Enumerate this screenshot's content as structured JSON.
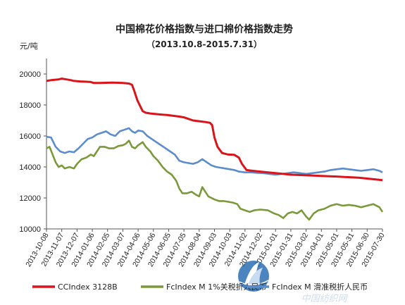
{
  "chart_data": {
    "type": "line",
    "title": "中国棉花价格指数与进口棉价格指数走势",
    "subtitle": "（2013.10.8-2015.7.31）",
    "ylabel": "元/吨",
    "ylim": [
      10000,
      21000
    ],
    "yticks": [
      "10000",
      "12000",
      "14000",
      "16000",
      "18000",
      "20000"
    ],
    "grid": false,
    "legend": "bottom",
    "categories": [
      "2013-10-08",
      "2013-11-07",
      "2013-12-07",
      "2014-01-06",
      "2014-02-05",
      "2014-03-07",
      "2014-04-06",
      "2014-05-06",
      "2014-06-05",
      "2014-07-05",
      "2014-08-04",
      "2014-09-03",
      "2014-10-03",
      "2014-11-02",
      "2014-12-02",
      "2015-01-01",
      "2015-01-31",
      "2015-03-02",
      "2015-04-01",
      "2015-05-01",
      "2015-05-31",
      "2015-06-30",
      "2015-07-30"
    ],
    "series": [
      {
        "name": "CCIndex 3128B",
        "color": "#d9141a",
        "points": [
          [
            0,
            19550
          ],
          [
            0.3,
            19600
          ],
          [
            0.8,
            19650
          ],
          [
            1.0,
            19700
          ],
          [
            1.3,
            19650
          ],
          [
            1.6,
            19600
          ],
          [
            1.8,
            19550
          ],
          [
            2.2,
            19520
          ],
          [
            2.6,
            19500
          ],
          [
            2.9,
            19480
          ],
          [
            3.1,
            19420
          ],
          [
            3.5,
            19420
          ],
          [
            3.9,
            19430
          ],
          [
            4.3,
            19440
          ],
          [
            4.7,
            19430
          ],
          [
            5.0,
            19420
          ],
          [
            5.4,
            19380
          ],
          [
            5.6,
            19300
          ],
          [
            5.75,
            18900
          ],
          [
            5.95,
            18300
          ],
          [
            6.15,
            17900
          ],
          [
            6.3,
            17600
          ],
          [
            6.5,
            17500
          ],
          [
            6.8,
            17450
          ],
          [
            7.1,
            17420
          ],
          [
            7.5,
            17380
          ],
          [
            7.9,
            17350
          ],
          [
            8.3,
            17300
          ],
          [
            8.7,
            17250
          ],
          [
            9.0,
            17200
          ],
          [
            9.3,
            17100
          ],
          [
            9.6,
            17000
          ],
          [
            10.0,
            16950
          ],
          [
            10.4,
            16900
          ],
          [
            10.7,
            16850
          ],
          [
            10.85,
            16700
          ],
          [
            11.0,
            15900
          ],
          [
            11.2,
            15300
          ],
          [
            11.5,
            14900
          ],
          [
            11.9,
            14800
          ],
          [
            12.3,
            14780
          ],
          [
            12.6,
            14600
          ],
          [
            12.8,
            14200
          ],
          [
            13.1,
            13800
          ],
          [
            13.5,
            13750
          ],
          [
            14.0,
            13700
          ],
          [
            14.5,
            13650
          ],
          [
            15.0,
            13600
          ],
          [
            15.5,
            13550
          ],
          [
            16.0,
            13500
          ],
          [
            16.5,
            13480
          ],
          [
            17.0,
            13460
          ],
          [
            17.5,
            13440
          ],
          [
            18.0,
            13420
          ],
          [
            18.5,
            13400
          ],
          [
            19.0,
            13380
          ],
          [
            19.5,
            13350
          ],
          [
            20.0,
            13330
          ],
          [
            20.5,
            13300
          ],
          [
            21.0,
            13250
          ],
          [
            21.5,
            13200
          ],
          [
            22.0,
            13150
          ]
        ]
      },
      {
        "name": "FcIndex M 1%关税折人民币",
        "color": "#7a9a3a",
        "points": [
          [
            0,
            15200
          ],
          [
            0.2,
            15300
          ],
          [
            0.4,
            14800
          ],
          [
            0.6,
            14300
          ],
          [
            0.8,
            14000
          ],
          [
            1.0,
            14100
          ],
          [
            1.2,
            13900
          ],
          [
            1.5,
            14000
          ],
          [
            1.8,
            13900
          ],
          [
            2.0,
            14200
          ],
          [
            2.3,
            14500
          ],
          [
            2.6,
            14600
          ],
          [
            2.9,
            14800
          ],
          [
            3.1,
            14700
          ],
          [
            3.3,
            15000
          ],
          [
            3.5,
            15300
          ],
          [
            3.8,
            15300
          ],
          [
            4.1,
            15200
          ],
          [
            4.4,
            15200
          ],
          [
            4.7,
            15350
          ],
          [
            5.0,
            15400
          ],
          [
            5.2,
            15500
          ],
          [
            5.4,
            15700
          ],
          [
            5.6,
            15300
          ],
          [
            5.8,
            15200
          ],
          [
            6.0,
            15400
          ],
          [
            6.3,
            15600
          ],
          [
            6.5,
            15300
          ],
          [
            6.8,
            15000
          ],
          [
            7.0,
            14700
          ],
          [
            7.3,
            14400
          ],
          [
            7.6,
            14000
          ],
          [
            7.9,
            13700
          ],
          [
            8.2,
            13500
          ],
          [
            8.5,
            13100
          ],
          [
            8.7,
            12600
          ],
          [
            8.9,
            12300
          ],
          [
            9.2,
            12300
          ],
          [
            9.5,
            12400
          ],
          [
            9.8,
            12200
          ],
          [
            10.0,
            12100
          ],
          [
            10.2,
            12700
          ],
          [
            10.4,
            12400
          ],
          [
            10.6,
            12100
          ],
          [
            10.8,
            12000
          ],
          [
            11.0,
            11900
          ],
          [
            11.3,
            11800
          ],
          [
            11.6,
            11800
          ],
          [
            11.9,
            11750
          ],
          [
            12.2,
            11700
          ],
          [
            12.5,
            11600
          ],
          [
            12.7,
            11300
          ],
          [
            13.0,
            11200
          ],
          [
            13.3,
            11100
          ],
          [
            13.6,
            11200
          ],
          [
            14.0,
            11250
          ],
          [
            14.5,
            11200
          ],
          [
            14.9,
            11000
          ],
          [
            15.2,
            10900
          ],
          [
            15.5,
            10700
          ],
          [
            15.8,
            11000
          ],
          [
            16.1,
            11100
          ],
          [
            16.4,
            11000
          ],
          [
            16.7,
            11200
          ],
          [
            17.0,
            10800
          ],
          [
            17.2,
            10600
          ],
          [
            17.5,
            11000
          ],
          [
            17.8,
            11200
          ],
          [
            18.2,
            11300
          ],
          [
            18.6,
            11500
          ],
          [
            19.0,
            11600
          ],
          [
            19.4,
            11500
          ],
          [
            19.8,
            11550
          ],
          [
            20.2,
            11500
          ],
          [
            20.6,
            11400
          ],
          [
            21.0,
            11500
          ],
          [
            21.4,
            11600
          ],
          [
            21.8,
            11400
          ],
          [
            22.0,
            11100
          ]
        ]
      },
      {
        "name": "FcIndex M 滑准税折人民币",
        "color": "#5b8ccc",
        "points": [
          [
            0,
            15950
          ],
          [
            0.3,
            15900
          ],
          [
            0.6,
            15300
          ],
          [
            0.9,
            15000
          ],
          [
            1.2,
            14900
          ],
          [
            1.5,
            15000
          ],
          [
            1.8,
            14950
          ],
          [
            2.1,
            15200
          ],
          [
            2.4,
            15500
          ],
          [
            2.7,
            15800
          ],
          [
            3.0,
            15900
          ],
          [
            3.3,
            16100
          ],
          [
            3.6,
            16200
          ],
          [
            3.9,
            16300
          ],
          [
            4.2,
            16100
          ],
          [
            4.5,
            16000
          ],
          [
            4.8,
            16300
          ],
          [
            5.1,
            16400
          ],
          [
            5.4,
            16500
          ],
          [
            5.6,
            16300
          ],
          [
            5.8,
            16200
          ],
          [
            6.0,
            16350
          ],
          [
            6.3,
            16300
          ],
          [
            6.6,
            16000
          ],
          [
            6.9,
            15800
          ],
          [
            7.2,
            15600
          ],
          [
            7.5,
            15400
          ],
          [
            7.8,
            15200
          ],
          [
            8.1,
            15000
          ],
          [
            8.4,
            14800
          ],
          [
            8.7,
            14400
          ],
          [
            9.0,
            14300
          ],
          [
            9.3,
            14250
          ],
          [
            9.6,
            14200
          ],
          [
            9.9,
            14300
          ],
          [
            10.2,
            14500
          ],
          [
            10.5,
            14300
          ],
          [
            10.8,
            14100
          ],
          [
            11.1,
            14000
          ],
          [
            11.4,
            13950
          ],
          [
            11.7,
            13900
          ],
          [
            12.0,
            13850
          ],
          [
            12.3,
            13800
          ],
          [
            12.6,
            13700
          ],
          [
            13.0,
            13650
          ],
          [
            13.4,
            13650
          ],
          [
            13.8,
            13620
          ],
          [
            14.2,
            13600
          ],
          [
            14.6,
            13550
          ],
          [
            15.0,
            13500
          ],
          [
            15.4,
            13550
          ],
          [
            15.8,
            13600
          ],
          [
            16.2,
            13650
          ],
          [
            16.6,
            13600
          ],
          [
            17.0,
            13550
          ],
          [
            17.4,
            13600
          ],
          [
            17.8,
            13650
          ],
          [
            18.2,
            13700
          ],
          [
            18.6,
            13800
          ],
          [
            19.0,
            13850
          ],
          [
            19.4,
            13900
          ],
          [
            19.8,
            13850
          ],
          [
            20.2,
            13800
          ],
          [
            20.6,
            13750
          ],
          [
            21.0,
            13800
          ],
          [
            21.4,
            13850
          ],
          [
            21.8,
            13750
          ],
          [
            22.0,
            13650
          ]
        ]
      }
    ]
  },
  "watermark": {
    "logo_icon": "globe-sail-logo-icon",
    "text": "中国纺织网"
  }
}
